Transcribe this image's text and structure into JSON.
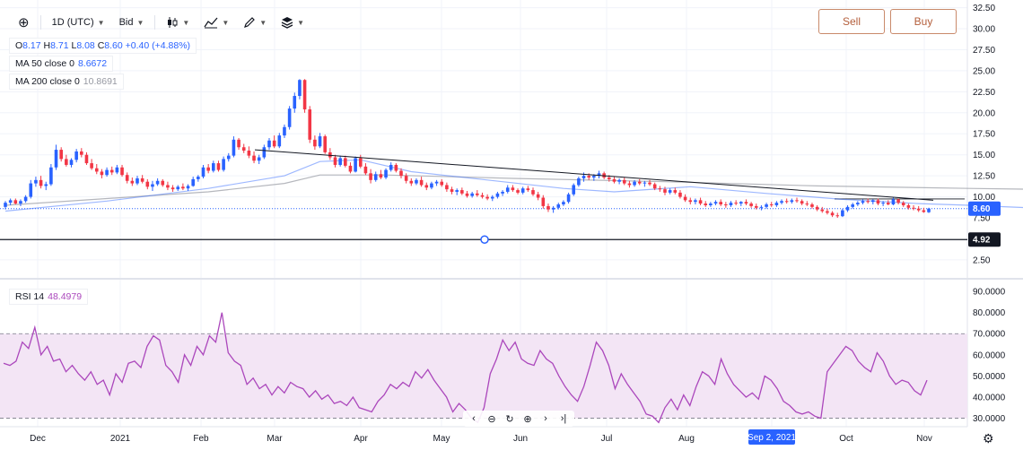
{
  "toolbar": {
    "interval": "1D (UTC)",
    "price_type": "Bid"
  },
  "legend": {
    "ohlc": {
      "o_label": "O",
      "o": "8.17",
      "h_label": "H",
      "h": "8.71",
      "l_label": "L",
      "l": "8.08",
      "c_label": "C",
      "c": "8.60",
      "change": "+0.40 (+4.88%)"
    },
    "ma50": {
      "name": "MA 50 close 0",
      "value": "8.6672"
    },
    "ma200": {
      "name": "MA 200 close 0",
      "value": "10.8691"
    },
    "rsi": {
      "name": "RSI 14",
      "value": "48.4979"
    }
  },
  "buttons": {
    "sell": "Sell",
    "buy": "Buy"
  },
  "colors": {
    "up": "#2962ff",
    "down": "#f23645",
    "ma50": "#2962ff",
    "ma200": "#9598a1",
    "rsi": "#ab47bc",
    "band": "#f3e5f5"
  },
  "chart_data": {
    "type": "candlestick",
    "price_axis": {
      "ticks": [
        "32.50",
        "30.00",
        "27.50",
        "25.00",
        "22.50",
        "20.00",
        "17.50",
        "15.00",
        "12.50",
        "10.00",
        "7.50",
        "2.50"
      ],
      "min": 1.0,
      "max": 33.2
    },
    "time_axis": {
      "labels": [
        "Dec",
        "2021",
        "Feb",
        "Mar",
        "Apr",
        "May",
        "Jun",
        "Jul",
        "Aug",
        "Sep 2, 2021",
        "Oct",
        "Nov"
      ]
    },
    "last_price": "8.60",
    "horizontal_line": "4.92",
    "trendline": [
      [
        15.6,
        9.6
      ]
    ],
    "candles": [
      [
        8.8,
        9.5,
        8.5,
        9.3
      ],
      [
        9.3,
        9.8,
        9.0,
        9.6
      ],
      [
        9.6,
        9.8,
        9.1,
        9.2
      ],
      [
        9.2,
        9.7,
        8.9,
        9.5
      ],
      [
        9.5,
        10.2,
        9.3,
        10.0
      ],
      [
        10.0,
        12.0,
        9.8,
        11.6
      ],
      [
        11.6,
        12.4,
        11.2,
        12.0
      ],
      [
        12.0,
        12.5,
        11.0,
        11.3
      ],
      [
        11.3,
        11.8,
        10.8,
        11.5
      ],
      [
        11.5,
        13.9,
        11.3,
        13.5
      ],
      [
        13.5,
        16.2,
        13.2,
        15.6
      ],
      [
        15.6,
        15.9,
        14.2,
        14.5
      ],
      [
        14.5,
        15.0,
        13.6,
        13.8
      ],
      [
        13.8,
        14.6,
        13.5,
        14.4
      ],
      [
        14.4,
        15.7,
        14.1,
        15.4
      ],
      [
        15.4,
        15.8,
        14.7,
        15.0
      ],
      [
        15.0,
        15.3,
        13.8,
        14.0
      ],
      [
        14.0,
        14.5,
        13.2,
        13.4
      ],
      [
        13.4,
        13.9,
        12.7,
        13.0
      ],
      [
        13.0,
        13.3,
        12.2,
        12.6
      ],
      [
        12.6,
        13.5,
        12.4,
        13.2
      ],
      [
        13.2,
        13.6,
        12.6,
        12.9
      ],
      [
        12.9,
        13.8,
        12.7,
        13.5
      ],
      [
        13.5,
        13.8,
        12.4,
        12.6
      ],
      [
        12.6,
        12.9,
        11.6,
        11.9
      ],
      [
        11.9,
        12.3,
        11.3,
        11.6
      ],
      [
        11.6,
        12.5,
        11.4,
        12.2
      ],
      [
        12.2,
        12.6,
        11.6,
        11.8
      ],
      [
        11.8,
        12.1,
        10.9,
        11.2
      ],
      [
        11.2,
        11.9,
        10.7,
        11.5
      ],
      [
        11.5,
        12.2,
        11.3,
        11.9
      ],
      [
        11.9,
        12.1,
        11.2,
        11.4
      ],
      [
        11.4,
        11.8,
        10.8,
        11.1
      ],
      [
        11.1,
        11.4,
        10.6,
        10.9
      ],
      [
        10.9,
        11.4,
        10.7,
        11.2
      ],
      [
        11.2,
        11.6,
        10.8,
        11.0
      ],
      [
        11.0,
        11.5,
        10.7,
        11.3
      ],
      [
        11.3,
        12.4,
        11.2,
        12.1
      ],
      [
        12.1,
        12.6,
        11.8,
        12.4
      ],
      [
        12.4,
        13.8,
        12.2,
        13.5
      ],
      [
        13.5,
        13.9,
        12.8,
        13.1
      ],
      [
        13.1,
        14.3,
        12.9,
        14.0
      ],
      [
        14.0,
        14.3,
        13.0,
        13.2
      ],
      [
        13.2,
        14.8,
        13.0,
        14.5
      ],
      [
        14.5,
        15.2,
        14.2,
        14.9
      ],
      [
        14.9,
        17.2,
        14.7,
        16.8
      ],
      [
        16.8,
        17.0,
        15.6,
        15.9
      ],
      [
        15.9,
        16.3,
        15.2,
        15.5
      ],
      [
        15.5,
        16.0,
        14.6,
        14.9
      ],
      [
        14.9,
        15.4,
        14.0,
        14.3
      ],
      [
        14.3,
        15.0,
        13.9,
        14.7
      ],
      [
        14.7,
        16.2,
        14.5,
        15.9
      ],
      [
        15.9,
        17.0,
        15.6,
        16.7
      ],
      [
        16.7,
        17.3,
        15.8,
        16.0
      ],
      [
        16.0,
        17.6,
        15.8,
        17.3
      ],
      [
        17.3,
        18.6,
        17.0,
        18.3
      ],
      [
        18.3,
        20.8,
        18.0,
        20.5
      ],
      [
        20.5,
        22.4,
        20.0,
        22.0
      ],
      [
        22.0,
        24.0,
        21.6,
        23.9
      ],
      [
        23.9,
        24.0,
        20.0,
        20.4
      ],
      [
        20.4,
        20.8,
        16.4,
        16.8
      ],
      [
        16.8,
        17.3,
        15.6,
        16.0
      ],
      [
        16.0,
        17.6,
        15.8,
        17.2
      ],
      [
        17.2,
        17.4,
        15.1,
        15.3
      ],
      [
        15.3,
        15.8,
        14.4,
        14.7
      ],
      [
        14.7,
        15.0,
        13.5,
        13.8
      ],
      [
        13.8,
        14.9,
        13.6,
        14.6
      ],
      [
        14.6,
        14.9,
        13.5,
        13.7
      ],
      [
        13.7,
        14.1,
        12.8,
        13.0
      ],
      [
        13.0,
        14.8,
        12.9,
        14.6
      ],
      [
        14.6,
        15.0,
        13.4,
        13.6
      ],
      [
        13.6,
        14.0,
        12.6,
        12.8
      ],
      [
        12.8,
        13.3,
        11.6,
        12.0
      ],
      [
        12.0,
        13.0,
        11.8,
        12.7
      ],
      [
        12.7,
        13.2,
        12.1,
        12.3
      ],
      [
        12.3,
        13.4,
        12.1,
        13.2
      ],
      [
        13.2,
        14.1,
        13.0,
        13.8
      ],
      [
        13.8,
        14.0,
        12.9,
        13.1
      ],
      [
        13.1,
        13.4,
        12.2,
        12.5
      ],
      [
        12.5,
        12.8,
        11.6,
        11.9
      ],
      [
        11.9,
        12.2,
        11.3,
        11.6
      ],
      [
        11.6,
        12.2,
        11.4,
        12.0
      ],
      [
        12.0,
        12.4,
        11.2,
        11.4
      ],
      [
        11.4,
        11.7,
        10.8,
        11.1
      ],
      [
        11.1,
        11.8,
        10.9,
        11.6
      ],
      [
        11.6,
        12.0,
        11.3,
        11.8
      ],
      [
        11.8,
        12.1,
        11.2,
        11.4
      ],
      [
        11.4,
        11.7,
        10.6,
        10.9
      ],
      [
        10.9,
        11.2,
        10.3,
        10.6
      ],
      [
        10.6,
        11.0,
        10.2,
        10.8
      ],
      [
        10.8,
        11.1,
        10.2,
        10.4
      ],
      [
        10.4,
        10.7,
        9.9,
        10.1
      ],
      [
        10.1,
        10.6,
        9.9,
        10.4
      ],
      [
        10.4,
        10.8,
        10.0,
        10.2
      ],
      [
        10.2,
        10.5,
        9.8,
        10.0
      ],
      [
        10.0,
        10.3,
        9.6,
        9.8
      ],
      [
        9.8,
        10.2,
        9.5,
        10.0
      ],
      [
        10.0,
        10.6,
        9.8,
        10.4
      ],
      [
        10.4,
        10.8,
        10.1,
        10.6
      ],
      [
        10.6,
        11.4,
        10.4,
        11.1
      ],
      [
        11.1,
        11.4,
        10.6,
        10.8
      ],
      [
        10.8,
        11.0,
        10.3,
        10.5
      ],
      [
        10.5,
        11.2,
        10.3,
        11.0
      ],
      [
        11.0,
        11.3,
        10.6,
        10.8
      ],
      [
        10.8,
        11.1,
        10.1,
        10.3
      ],
      [
        10.3,
        10.6,
        9.6,
        9.9
      ],
      [
        9.9,
        10.2,
        8.6,
        8.9
      ],
      [
        8.9,
        9.2,
        8.2,
        8.5
      ],
      [
        8.5,
        8.9,
        8.1,
        8.7
      ],
      [
        8.7,
        9.3,
        8.5,
        9.1
      ],
      [
        9.1,
        9.6,
        8.9,
        9.4
      ],
      [
        9.4,
        10.5,
        9.2,
        10.3
      ],
      [
        10.3,
        11.6,
        10.1,
        11.4
      ],
      [
        11.4,
        12.4,
        11.2,
        12.2
      ],
      [
        12.2,
        12.9,
        11.8,
        12.5
      ],
      [
        12.5,
        12.8,
        12.0,
        12.3
      ],
      [
        12.3,
        12.7,
        11.9,
        12.5
      ],
      [
        12.5,
        13.1,
        12.2,
        12.8
      ],
      [
        12.8,
        13.0,
        12.1,
        12.3
      ],
      [
        12.3,
        12.6,
        11.8,
        12.1
      ],
      [
        12.1,
        12.4,
        11.6,
        11.8
      ],
      [
        11.8,
        12.2,
        11.5,
        12.0
      ],
      [
        12.0,
        12.3,
        11.4,
        11.6
      ],
      [
        11.6,
        11.9,
        11.1,
        11.4
      ],
      [
        11.4,
        12.0,
        11.2,
        11.8
      ],
      [
        11.8,
        12.1,
        11.4,
        11.6
      ],
      [
        11.6,
        11.9,
        11.2,
        11.7
      ],
      [
        11.7,
        12.0,
        11.3,
        11.5
      ],
      [
        11.5,
        11.7,
        10.8,
        11.0
      ],
      [
        11.0,
        11.3,
        10.6,
        10.9
      ],
      [
        10.9,
        11.2,
        10.2,
        10.5
      ],
      [
        10.5,
        11.0,
        10.3,
        10.8
      ],
      [
        10.8,
        11.1,
        10.3,
        10.5
      ],
      [
        10.5,
        10.8,
        9.8,
        10.0
      ],
      [
        10.0,
        10.3,
        9.4,
        9.6
      ],
      [
        9.6,
        9.9,
        9.1,
        9.4
      ],
      [
        9.4,
        9.8,
        9.1,
        9.6
      ],
      [
        9.6,
        9.9,
        9.0,
        9.2
      ],
      [
        9.2,
        9.5,
        8.8,
        9.0
      ],
      [
        9.0,
        9.4,
        8.8,
        9.2
      ],
      [
        9.2,
        9.6,
        9.0,
        9.4
      ],
      [
        9.4,
        9.7,
        8.9,
        9.1
      ],
      [
        9.1,
        9.4,
        8.7,
        9.0
      ],
      [
        9.0,
        9.5,
        8.8,
        9.3
      ],
      [
        9.3,
        9.6,
        9.0,
        9.2
      ],
      [
        9.2,
        9.5,
        8.9,
        9.4
      ],
      [
        9.4,
        9.7,
        9.0,
        9.2
      ],
      [
        9.2,
        9.4,
        8.7,
        8.9
      ],
      [
        8.9,
        9.2,
        8.5,
        8.7
      ],
      [
        8.7,
        9.0,
        8.4,
        8.8
      ],
      [
        8.8,
        9.3,
        8.6,
        9.1
      ],
      [
        9.1,
        9.4,
        8.8,
        9.0
      ],
      [
        9.0,
        9.5,
        8.8,
        9.3
      ],
      [
        9.3,
        9.7,
        9.1,
        9.5
      ],
      [
        9.5,
        9.8,
        9.2,
        9.4
      ],
      [
        9.4,
        9.8,
        9.2,
        9.6
      ],
      [
        9.6,
        9.9,
        9.3,
        9.5
      ],
      [
        9.5,
        9.7,
        9.0,
        9.2
      ],
      [
        9.2,
        9.5,
        8.9,
        9.1
      ],
      [
        9.1,
        9.3,
        8.6,
        8.8
      ],
      [
        8.8,
        9.0,
        8.3,
        8.5
      ],
      [
        8.5,
        8.8,
        8.1,
        8.3
      ],
      [
        8.3,
        8.6,
        7.9,
        8.1
      ],
      [
        8.1,
        8.3,
        7.6,
        7.8
      ],
      [
        7.8,
        8.1,
        7.5,
        7.7
      ],
      [
        7.7,
        8.6,
        7.6,
        8.4
      ],
      [
        8.4,
        9.0,
        8.2,
        8.8
      ],
      [
        8.8,
        9.3,
        8.6,
        9.1
      ],
      [
        9.1,
        9.5,
        8.9,
        9.3
      ],
      [
        9.3,
        9.7,
        9.1,
        9.5
      ],
      [
        9.5,
        9.8,
        9.2,
        9.4
      ],
      [
        9.4,
        9.7,
        9.1,
        9.6
      ],
      [
        9.6,
        9.8,
        9.0,
        9.2
      ],
      [
        9.2,
        9.5,
        8.9,
        9.3
      ],
      [
        9.3,
        9.6,
        9.0,
        9.1
      ],
      [
        9.1,
        9.9,
        9.0,
        9.7
      ],
      [
        9.7,
        9.8,
        9.1,
        9.3
      ],
      [
        9.3,
        9.5,
        8.8,
        9.0
      ],
      [
        9.0,
        9.2,
        8.5,
        8.7
      ],
      [
        8.7,
        9.0,
        8.4,
        8.6
      ],
      [
        8.6,
        8.9,
        8.2,
        8.4
      ],
      [
        8.4,
        8.7,
        8.1,
        8.2
      ],
      [
        8.17,
        8.71,
        8.08,
        8.6
      ]
    ],
    "ma50_curve": [
      [
        0,
        8.3
      ],
      [
        20,
        9.5
      ],
      [
        40,
        11.0
      ],
      [
        55,
        12.5
      ],
      [
        62,
        14.2
      ],
      [
        70,
        14.4
      ],
      [
        80,
        13.0
      ],
      [
        95,
        12.0
      ],
      [
        110,
        11.0
      ],
      [
        120,
        10.6
      ],
      [
        135,
        11.2
      ],
      [
        150,
        10.4
      ],
      [
        165,
        9.7
      ],
      [
        180,
        9.2
      ],
      [
        190,
        9.0
      ],
      [
        202,
        8.7
      ]
    ],
    "ma200_curve": [
      [
        0,
        9.0
      ],
      [
        20,
        9.8
      ],
      [
        40,
        10.6
      ],
      [
        55,
        11.6
      ],
      [
        62,
        12.6
      ],
      [
        75,
        12.6
      ],
      [
        100,
        12.2
      ],
      [
        130,
        11.8
      ],
      [
        160,
        11.3
      ],
      [
        190,
        11.0
      ],
      [
        202,
        10.9
      ]
    ],
    "rsi": {
      "ticks": [
        "90.0000",
        "80.0000",
        "70.0000",
        "60.0000",
        "50.0000",
        "40.0000",
        "30.0000"
      ],
      "upper": 70,
      "lower": 30,
      "values": [
        56,
        55,
        57,
        66,
        63,
        73,
        60,
        64,
        57,
        58,
        52,
        55,
        51,
        48,
        52,
        46,
        48,
        41,
        51,
        47,
        56,
        57,
        54,
        64,
        69,
        67,
        55,
        52,
        47,
        60,
        55,
        64,
        60,
        69,
        66,
        80,
        61,
        57,
        55,
        46,
        49,
        44,
        46,
        41,
        45,
        42,
        47,
        45,
        44,
        40,
        43,
        39,
        41,
        37,
        38,
        36,
        40,
        35,
        34,
        33,
        38,
        41,
        46,
        44,
        47,
        45,
        52,
        49,
        53,
        48,
        44,
        40,
        33,
        37,
        34,
        30,
        28,
        35,
        51,
        58,
        67,
        62,
        66,
        58,
        56,
        55,
        62,
        58,
        56,
        50,
        45,
        41,
        38,
        45,
        55,
        66,
        62,
        55,
        44,
        51,
        46,
        42,
        38,
        32,
        31,
        28,
        35,
        39,
        34,
        41,
        36,
        45,
        52,
        50,
        46,
        58,
        51,
        46,
        43,
        40,
        42,
        39,
        50,
        48,
        44,
        38,
        36,
        33,
        32,
        33,
        31,
        30,
        52,
        56,
        60,
        64,
        62,
        57,
        54,
        52,
        61,
        57,
        50,
        46,
        48,
        47,
        43,
        41,
        48
      ]
    }
  }
}
